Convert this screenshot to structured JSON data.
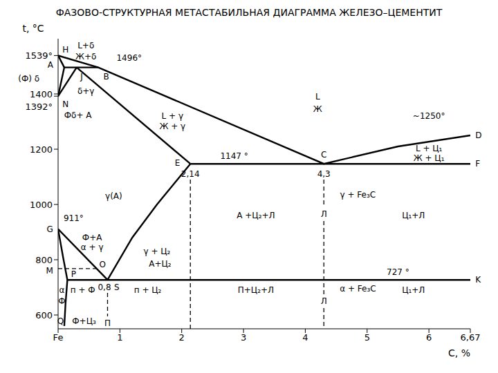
{
  "chart_data": {
    "type": "line",
    "title": "ФАЗОВО-СТРУКТУРНАЯ МЕТАСТАБИЛЬНАЯ ДИАГРАММА ЖЕЛЕЗО–ЦЕМЕНТИТ",
    "x_label": "C, %",
    "y_label": "t, °C",
    "color": "#000000",
    "grid": false,
    "xlim": [
      0,
      6.67
    ],
    "ylim": [
      550,
      1600
    ],
    "xticks": [
      {
        "value": 0,
        "label": "Fe"
      },
      1,
      2,
      3,
      4,
      5,
      6,
      {
        "value": 6.67,
        "label": "6,67"
      }
    ],
    "yticks": [
      600,
      800,
      1000,
      1200,
      1400,
      {
        "value": 1392,
        "label": "1392°"
      },
      {
        "value": 1539,
        "label": "1539°"
      }
    ],
    "series": [
      {
        "x": [
          0,
          0.65,
          4.3,
          5.5,
          6.67
        ],
        "y": [
          1539,
          1496,
          1147,
          1210,
          1250
        ],
        "line_style": "solid"
      },
      {
        "x": [
          0,
          0.1
        ],
        "y": [
          1539,
          1496
        ],
        "line_style": "solid"
      },
      {
        "x": [
          0.1,
          0.65
        ],
        "y": [
          1496,
          1496
        ],
        "line_style": "solid"
      },
      {
        "x": [
          0.1,
          0
        ],
        "y": [
          1496,
          1392
        ],
        "line_style": "solid"
      },
      {
        "x": [
          0.3,
          0
        ],
        "y": [
          1496,
          1392
        ],
        "line_style": "solid"
      },
      {
        "x": [
          0.3,
          2.14
        ],
        "y": [
          1496,
          1147
        ],
        "line_style": "solid"
      },
      {
        "x": [
          2.14,
          6.67
        ],
        "y": [
          1147,
          1147
        ],
        "line_style": "solid"
      },
      {
        "x": [
          2.14,
          1.6,
          1.2,
          0.8
        ],
        "y": [
          1147,
          1000,
          880,
          727
        ],
        "line_style": "solid"
      },
      {
        "x": [
          0,
          0.8
        ],
        "y": [
          911,
          727
        ],
        "line_style": "solid"
      },
      {
        "x": [
          0,
          0.08,
          0.15
        ],
        "y": [
          911,
          810,
          727
        ],
        "line_style": "solid"
      },
      {
        "x": [
          0.15,
          6.67
        ],
        "y": [
          727,
          727
        ],
        "line_style": "solid"
      },
      {
        "x": [
          0.15,
          0.12,
          0.1
        ],
        "y": [
          727,
          640,
          560
        ],
        "line_style": "solid"
      },
      {
        "x": [
          0,
          0.62
        ],
        "y": [
          768,
          768
        ],
        "line_style": "dashed"
      },
      {
        "x": [
          0.8,
          0.8
        ],
        "y": [
          680,
          595
        ],
        "line_style": "dashed"
      },
      {
        "x": [
          2.14,
          2.14
        ],
        "y": [
          1090,
          550
        ],
        "line_style": "dashed"
      },
      {
        "x": [
          4.3,
          4.3
        ],
        "y": [
          1090,
          990
        ],
        "line_style": "dashed"
      },
      {
        "x": [
          4.3,
          4.3
        ],
        "y": [
          940,
          675
        ],
        "line_style": "dashed"
      },
      {
        "x": [
          4.3,
          4.3
        ],
        "y": [
          625,
          550
        ],
        "line_style": "dashed"
      }
    ],
    "annotations": [
      {
        "text": "H",
        "x": 0.12,
        "y": 1560
      },
      {
        "text": "L+δ",
        "x": 0.45,
        "y": 1575
      },
      {
        "text": "Ж+δ",
        "x": 0.45,
        "y": 1535
      },
      {
        "text": "1496°",
        "x": 1.15,
        "y": 1530
      },
      {
        "text": "A",
        "x": -0.08,
        "y": 1505
      },
      {
        "text": "(Ф) δ",
        "x": -0.3,
        "y": 1455
      },
      {
        "text": "B",
        "x": 0.78,
        "y": 1462
      },
      {
        "text": "J",
        "x": 0.38,
        "y": 1462
      },
      {
        "text": "δ+γ",
        "x": 0.45,
        "y": 1410
      },
      {
        "text": "N",
        "x": 0.12,
        "y": 1362
      },
      {
        "text": "Фδ+ А",
        "x": 0.32,
        "y": 1322
      },
      {
        "text": "L + γ",
        "x": 1.85,
        "y": 1320
      },
      {
        "text": "Ж + γ",
        "x": 1.85,
        "y": 1282
      },
      {
        "text": "L",
        "x": 4.2,
        "y": 1390
      },
      {
        "text": "Ж",
        "x": 4.2,
        "y": 1345
      },
      {
        "text": "~1250°",
        "x": 6.0,
        "y": 1320
      },
      {
        "text": "D",
        "x": 6.75,
        "y": 1250
      },
      {
        "text": "L + Ц₁",
        "x": 6.0,
        "y": 1203
      },
      {
        "text": "Ж + Ц₁",
        "x": 6.0,
        "y": 1168
      },
      {
        "text": "F",
        "x": 6.75,
        "y": 1147
      },
      {
        "text": "1147 °",
        "x": 2.85,
        "y": 1175
      },
      {
        "text": "C",
        "x": 4.3,
        "y": 1180
      },
      {
        "text": "E",
        "x": 1.93,
        "y": 1150
      },
      {
        "text": "2,14",
        "x": 2.14,
        "y": 1110
      },
      {
        "text": "4,3",
        "x": 4.3,
        "y": 1110
      },
      {
        "text": "γ(A)",
        "x": 0.9,
        "y": 1030
      },
      {
        "text": "γ + Fe₃C",
        "x": 4.85,
        "y": 1035
      },
      {
        "text": "А +Ц₂+Л",
        "x": 3.2,
        "y": 960
      },
      {
        "text": "Л",
        "x": 4.3,
        "y": 965
      },
      {
        "text": "Ц₁+Л",
        "x": 5.75,
        "y": 960
      },
      {
        "text": "G",
        "x": -0.08,
        "y": 911
      },
      {
        "text": "911°",
        "x": 0.25,
        "y": 950
      },
      {
        "text": "Ф+А",
        "x": 0.55,
        "y": 880
      },
      {
        "text": "α + γ",
        "x": 0.55,
        "y": 845
      },
      {
        "text": "γ + Ц₂",
        "x": 1.6,
        "y": 830
      },
      {
        "text": "А+Ц₂",
        "x": 1.65,
        "y": 785
      },
      {
        "text": "M",
        "x": -0.08,
        "y": 760
      },
      {
        "text": "O",
        "x": 0.72,
        "y": 782
      },
      {
        "text": "P",
        "x": 0.25,
        "y": 748
      },
      {
        "text": "727 °",
        "x": 5.5,
        "y": 755
      },
      {
        "text": "K",
        "x": 6.75,
        "y": 727
      },
      {
        "text": "S",
        "x": 0.95,
        "y": 700
      },
      {
        "text": "0,8",
        "x": 0.75,
        "y": 700
      },
      {
        "text": "α",
        "x": 0.06,
        "y": 690
      },
      {
        "text": "Ф",
        "x": 0.06,
        "y": 650
      },
      {
        "text": "п + Ф",
        "x": 0.4,
        "y": 690
      },
      {
        "text": "п + Ц₂",
        "x": 1.45,
        "y": 690
      },
      {
        "text": "П+Ц₂+Л",
        "x": 3.2,
        "y": 690
      },
      {
        "text": "α + Fe₃C",
        "x": 4.85,
        "y": 695
      },
      {
        "text": "Л",
        "x": 4.3,
        "y": 650
      },
      {
        "text": "Ц₁+Л",
        "x": 5.75,
        "y": 690
      },
      {
        "text": "П",
        "x": 0.8,
        "y": 570
      },
      {
        "text": "Q",
        "x": 0.04,
        "y": 578
      },
      {
        "text": "Ф+Ц₃",
        "x": 0.42,
        "y": 578
      }
    ]
  }
}
